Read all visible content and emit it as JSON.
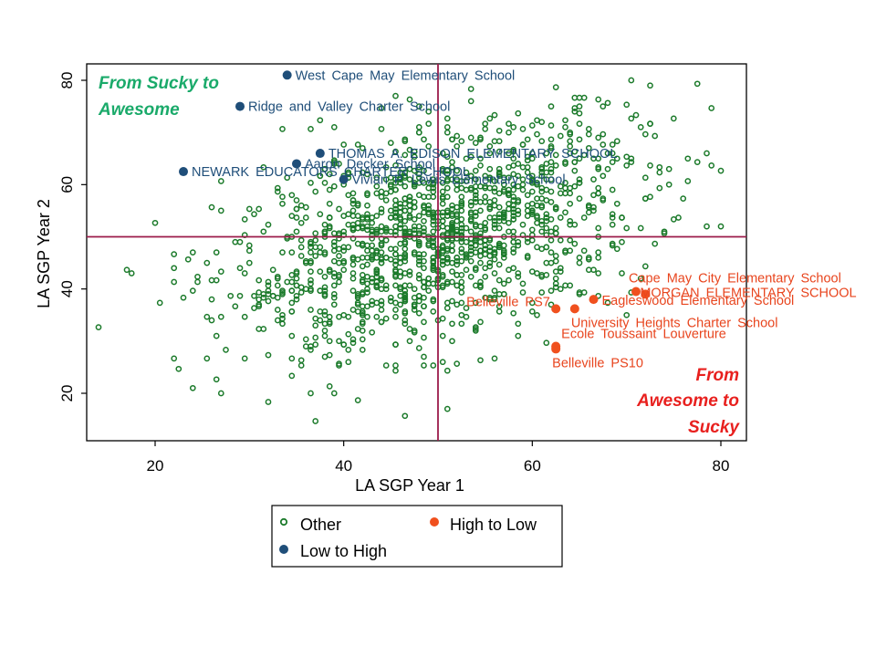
{
  "chart_data": {
    "type": "scatter",
    "title": "",
    "xlabel": "LA SGP Year 1",
    "ylabel": "LA SGP Year 2",
    "xlim": [
      13,
      83
    ],
    "ylim": [
      11,
      84
    ],
    "xticks": [
      20,
      40,
      60,
      80
    ],
    "yticks": [
      20,
      40,
      60,
      80
    ],
    "reference_lines": {
      "x": 50,
      "y": 50
    },
    "grid": false,
    "colors": {
      "other": "#1b7a2a",
      "low_to_high": "#1f4e79",
      "high_to_low": "#f0501e",
      "low_to_high_label": "#1f4e79",
      "high_to_low_label": "#e8451e",
      "ref_line": "#9b1b4a",
      "top_left_corner": "#1aaa6a",
      "bottom_right_corner": "#e8201e"
    },
    "corner_labels": {
      "top_left": [
        "From Sucky to",
        "Awesome"
      ],
      "bottom_right": [
        "From",
        "Awesome to",
        "Sucky"
      ]
    },
    "legend": {
      "other": "Other",
      "low_to_high": "Low to High",
      "high_to_low": "High to Low"
    },
    "series": [
      {
        "name": "Low to High",
        "points": [
          {
            "x": 34,
            "y": 81,
            "label": "West Cape May Elementary School"
          },
          {
            "x": 29,
            "y": 75,
            "label": "Ridge and Valley Charter School"
          },
          {
            "x": 37.5,
            "y": 66,
            "label": "THOMAS A. EDISON ELEMENTARY SCHOOL"
          },
          {
            "x": 35,
            "y": 64,
            "label": "Aaron Decker School"
          },
          {
            "x": 23,
            "y": 62.5,
            "label": "NEWARK EDUCATORS CHARTER SCHOOL"
          },
          {
            "x": 40,
            "y": 61,
            "label": "Vivian P. Lewis Elementary School"
          }
        ]
      },
      {
        "name": "High to Low",
        "points": [
          {
            "x": 71,
            "y": 39.5,
            "label": "Cape May City Elementary School"
          },
          {
            "x": 72,
            "y": 39,
            "label": "MORGAN ELEMENTARY SCHOOL"
          },
          {
            "x": 66.5,
            "y": 38,
            "label": "Eagleswood Elementary School"
          },
          {
            "x": 64.5,
            "y": 36.2,
            "label": "University Heights Charter School"
          },
          {
            "x": 62.5,
            "y": 36.2,
            "label": "Belleville PS7"
          },
          {
            "x": 62.5,
            "y": 29,
            "label": "Ecole Toussaint Louverture"
          },
          {
            "x": 62.5,
            "y": 28.5,
            "label": "Belleville PS10"
          }
        ]
      },
      {
        "name": "Other",
        "generated": true,
        "count": 1400,
        "x_center": 50,
        "x_sd": 11,
        "y_center": 50,
        "y_sd": 11,
        "correlation": 0.45,
        "x_range": [
          14,
          81
        ],
        "y_range": [
          13,
          81
        ]
      }
    ]
  }
}
